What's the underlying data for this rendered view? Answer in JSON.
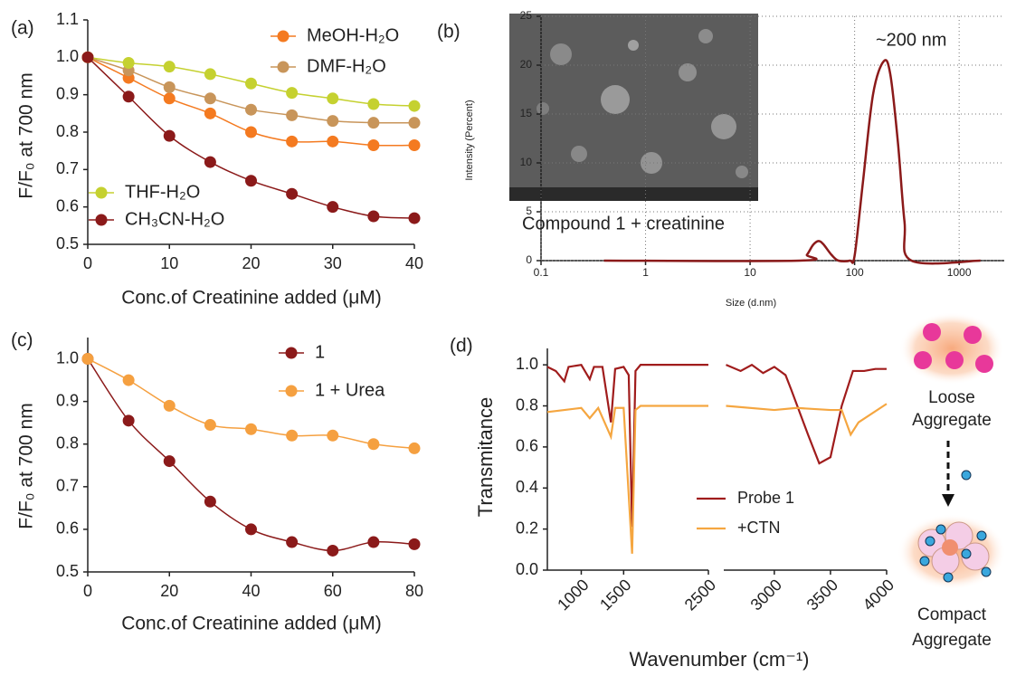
{
  "chart_data": [
    {
      "type": "scatter",
      "panel_label": "(a)",
      "fit_line": true,
      "x_label": "Conc.of Creatinine added (μM)",
      "y_label": "F/F₀ at 700 nm",
      "x": [
        0,
        5,
        10,
        15,
        20,
        25,
        30,
        35,
        40
      ],
      "series": [
        {
          "name": "MeOH-H₂O",
          "color": "#f47a20",
          "values": [
            1.0,
            0.945,
            0.89,
            0.85,
            0.8,
            0.775,
            0.775,
            0.765,
            0.765
          ]
        },
        {
          "name": "DMF-H₂O",
          "color": "#c8955a",
          "values": [
            1.0,
            0.965,
            0.92,
            0.89,
            0.86,
            0.845,
            0.83,
            0.825,
            0.825
          ]
        },
        {
          "name": "THF-H₂O",
          "color": "#c5d130",
          "values": [
            1.0,
            0.985,
            0.975,
            0.955,
            0.93,
            0.905,
            0.89,
            0.875,
            0.87
          ]
        },
        {
          "name": "CH₃CN-H₂O",
          "color": "#8b1a1a",
          "values": [
            1.0,
            0.895,
            0.79,
            0.72,
            0.67,
            0.635,
            0.6,
            0.575,
            0.57
          ]
        }
      ],
      "xlim": [
        0,
        40
      ],
      "xticks": [
        0,
        10,
        20,
        30,
        40
      ],
      "ylim": [
        0.5,
        1.1
      ],
      "yticks": [
        0.5,
        0.6,
        0.7,
        0.8,
        0.9,
        {
          "value": 1,
          "label": "1.0"
        },
        1.1
      ],
      "grid": false
    },
    {
      "type": "line",
      "panel_label": "(b)",
      "x_scale": "log",
      "x_label": "Size (d.nm)",
      "y_label": "Intensity (Percent)",
      "annotations": [
        "~200 nm",
        "Compound 1 + creatinine"
      ],
      "x": [
        0.4,
        30,
        35,
        40,
        45,
        50,
        60,
        70,
        90,
        100,
        120,
        150,
        190,
        220,
        260,
        300,
        350,
        1600
      ],
      "series": [
        {
          "color": "#8b1a1a",
          "values": [
            0,
            0,
            0.6,
            1.6,
            2.0,
            1.7,
            0.6,
            0,
            0,
            0.5,
            8,
            17,
            20.4,
            19,
            12,
            4,
            0,
            0
          ]
        }
      ],
      "xlim": [
        0.1,
        2700
      ],
      "xticks": [
        0.1,
        1,
        10,
        100,
        1000
      ],
      "ylim": [
        0,
        25
      ],
      "yticks": [
        0,
        5,
        10,
        15,
        20,
        25
      ],
      "grid": true
    },
    {
      "type": "scatter",
      "panel_label": "(c)",
      "fit_line": true,
      "x_label": "Conc.of Creatinine added (μM)",
      "y_label": "F/F₀ at 700 nm",
      "x": [
        0,
        10,
        20,
        30,
        40,
        50,
        60,
        70,
        80
      ],
      "series": [
        {
          "name": "1",
          "color": "#8b1a1a",
          "values": [
            1.0,
            0.855,
            0.76,
            0.665,
            0.6,
            0.57,
            0.55,
            0.57,
            0.565
          ]
        },
        {
          "name": "1 + Urea",
          "color": "#f5a040",
          "values": [
            1.0,
            0.95,
            0.89,
            0.845,
            0.835,
            0.82,
            0.82,
            0.8,
            0.79
          ]
        }
      ],
      "xlim": [
        0,
        80
      ],
      "xticks": [
        0,
        20,
        40,
        60,
        80
      ],
      "ylim": [
        0.5,
        1.05
      ],
      "yticks": [
        0.5,
        0.6,
        0.7,
        0.8,
        0.9,
        {
          "value": 1,
          "label": "1.0"
        }
      ],
      "grid": false
    },
    {
      "type": "line",
      "panel_label": "(d)",
      "broken_x": true,
      "x_label": "Wavenumber (cm⁻¹)",
      "y_label": "Transmitance",
      "series": [
        {
          "name": "Probe 1",
          "color": "#a01c1c",
          "x": [
            600,
            700,
            800,
            850,
            1000,
            1100,
            1150,
            1250,
            1350,
            1400,
            1500,
            1560,
            1600,
            1640,
            1700,
            2500,
            2570,
            2700,
            2800,
            2900,
            3000,
            3100,
            3150,
            3300,
            3400,
            3500,
            3600,
            3700,
            3800,
            3900,
            4000
          ],
          "values": [
            0.99,
            0.97,
            0.92,
            0.99,
            1.0,
            0.93,
            0.99,
            0.99,
            0.72,
            0.98,
            0.99,
            0.95,
            0.21,
            0.97,
            1.0,
            1.0,
            1.0,
            0.97,
            1.0,
            0.96,
            0.99,
            0.95,
            0.88,
            0.66,
            0.52,
            0.55,
            0.8,
            0.97,
            0.97,
            0.98,
            0.98
          ]
        },
        {
          "name": "+CTN",
          "color": "#f5a640",
          "x": [
            600,
            800,
            1000,
            1100,
            1200,
            1350,
            1400,
            1500,
            1600,
            1640,
            1700,
            2500,
            2570,
            3000,
            3200,
            3500,
            3600,
            3680,
            3750,
            4000
          ],
          "values": [
            0.77,
            0.78,
            0.79,
            0.74,
            0.79,
            0.65,
            0.79,
            0.79,
            0.08,
            0.78,
            0.8,
            0.8,
            0.8,
            0.78,
            0.79,
            0.78,
            0.78,
            0.66,
            0.72,
            0.81
          ]
        }
      ],
      "xlim": [
        600,
        2500
      ],
      "xticks": [
        1000,
        1500,
        2500
      ],
      "x2lim": [
        2550,
        4000
      ],
      "x2ticks": [
        3000,
        3500,
        4000
      ],
      "ylim": [
        0,
        1.08
      ],
      "yticks": [
        {
          "value": 0,
          "label": "0.0"
        },
        0.2,
        0.4,
        0.6,
        0.8,
        {
          "value": 1,
          "label": "1.0"
        }
      ],
      "grid": false
    }
  ],
  "schematic": {
    "loose": [
      "Loose",
      "Aggregate"
    ],
    "compact": [
      "Compact",
      "Aggregate"
    ]
  }
}
